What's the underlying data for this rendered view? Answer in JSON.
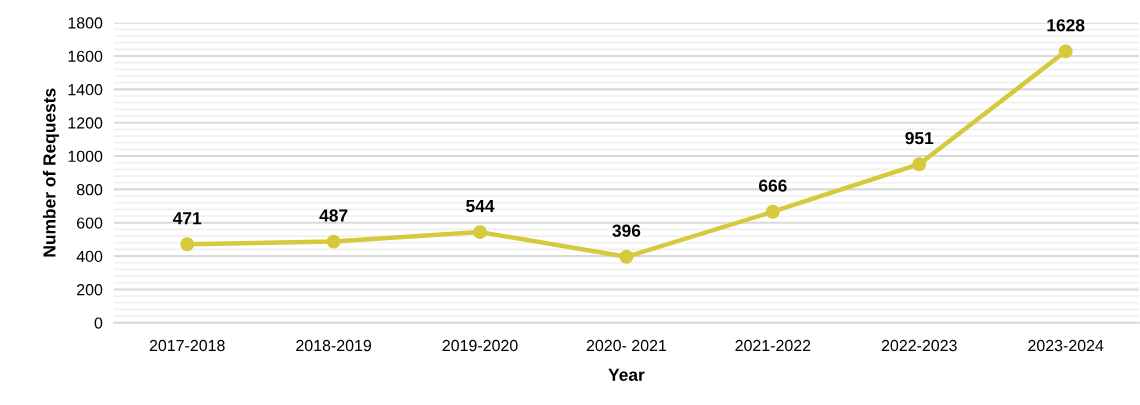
{
  "chart_data": {
    "type": "line",
    "xlabel": "Year",
    "ylabel": "Number of Requests",
    "categories": [
      "2017-2018",
      "2018-2019",
      "2019-2020",
      "2020- 2021",
      "2021-2022",
      "2022-2023",
      "2023-2024"
    ],
    "series": [
      {
        "color": "#d6c93c",
        "values": [
          471,
          487,
          544,
          396,
          666,
          951,
          1628
        ]
      }
    ],
    "ylim": [
      0,
      1800
    ],
    "yticks": [
      0,
      {
        "value": 40,
        "label": null
      },
      {
        "value": 80,
        "label": null
      },
      {
        "value": 120,
        "label": null
      },
      {
        "value": 160,
        "label": null
      },
      200,
      {
        "value": 240,
        "label": null
      },
      {
        "value": 280,
        "label": null
      },
      {
        "value": 320,
        "label": null
      },
      {
        "value": 360,
        "label": null
      },
      400,
      {
        "value": 440,
        "label": null
      },
      {
        "value": 480,
        "label": null
      },
      {
        "value": 520,
        "label": null
      },
      {
        "value": 560,
        "label": null
      },
      600,
      {
        "value": 640,
        "label": null
      },
      {
        "value": 680,
        "label": null
      },
      {
        "value": 720,
        "label": null
      },
      {
        "value": 760,
        "label": null
      },
      800,
      {
        "value": 840,
        "label": null
      },
      {
        "value": 880,
        "label": null
      },
      {
        "value": 920,
        "label": null
      },
      {
        "value": 960,
        "label": null
      },
      1000,
      {
        "value": 1040,
        "label": null
      },
      {
        "value": 1080,
        "label": null
      },
      {
        "value": 1120,
        "label": null
      },
      {
        "value": 1160,
        "label": null
      },
      1200,
      {
        "value": 1240,
        "label": null
      },
      {
        "value": 1280,
        "label": null
      },
      {
        "value": 1320,
        "label": null
      },
      {
        "value": 1360,
        "label": null
      },
      1400,
      {
        "value": 1440,
        "label": null
      },
      {
        "value": 1480,
        "label": null
      },
      {
        "value": 1520,
        "label": null
      },
      {
        "value": 1560,
        "label": null
      },
      1600,
      {
        "value": 1640,
        "label": null
      },
      {
        "value": 1680,
        "label": null
      },
      {
        "value": 1720,
        "label": null
      },
      {
        "value": 1760,
        "label": null
      },
      1800
    ],
    "grid": "y",
    "marker": "circle",
    "line_style": "solid",
    "data_labels": true
  }
}
